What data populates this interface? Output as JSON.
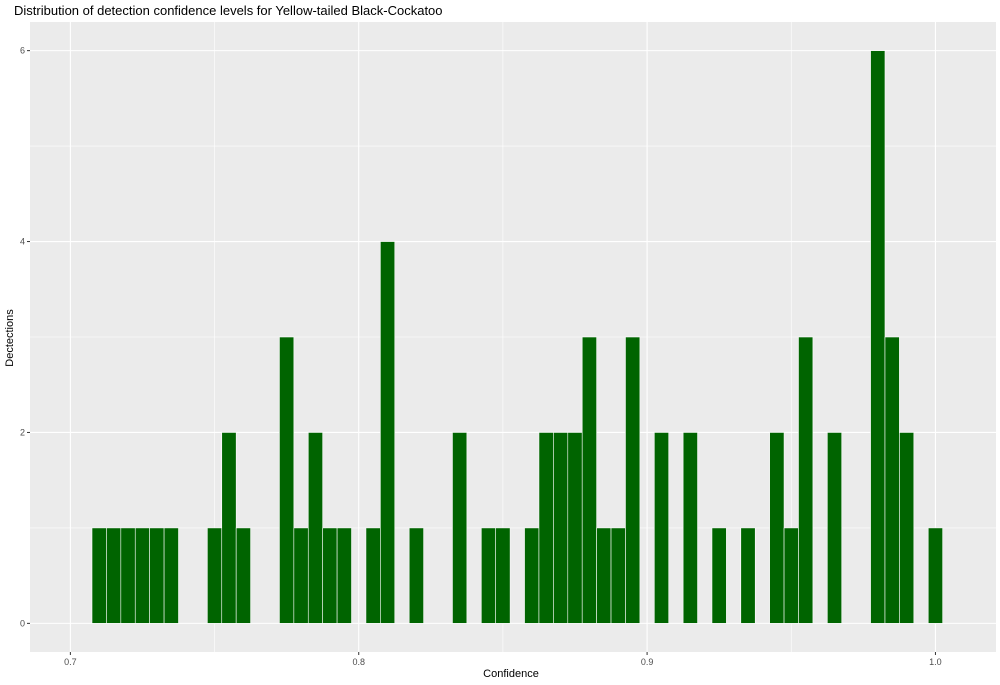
{
  "chart_data": {
    "type": "bar",
    "title": "Distribution of detection confidence levels for Yellow-tailed Black-Cockatoo",
    "xlabel": "Confidence",
    "ylabel": "Dectections",
    "xlim": [
      0.686,
      1.021
    ],
    "ylim": [
      -0.3,
      6.3
    ],
    "xticks": [
      0.7,
      0.8,
      0.9,
      1.0
    ],
    "xtick_labels": [
      "0.7",
      "0.8",
      "0.9",
      "1.0"
    ],
    "yticks": [
      0,
      2,
      4,
      6
    ],
    "ytick_labels": [
      "0",
      "2",
      "4",
      "6"
    ],
    "bin_width": 0.005,
    "grid": true,
    "colors": {
      "bar": "#006400",
      "bar_outline": "#ffffff",
      "panel": "#ebebeb",
      "grid": "#ffffff"
    },
    "bins": [
      {
        "x": 0.71,
        "count": 1
      },
      {
        "x": 0.715,
        "count": 1
      },
      {
        "x": 0.72,
        "count": 1
      },
      {
        "x": 0.725,
        "count": 1
      },
      {
        "x": 0.73,
        "count": 1
      },
      {
        "x": 0.735,
        "count": 1
      },
      {
        "x": 0.75,
        "count": 1
      },
      {
        "x": 0.755,
        "count": 2
      },
      {
        "x": 0.76,
        "count": 1
      },
      {
        "x": 0.775,
        "count": 3
      },
      {
        "x": 0.78,
        "count": 1
      },
      {
        "x": 0.785,
        "count": 2
      },
      {
        "x": 0.79,
        "count": 1
      },
      {
        "x": 0.795,
        "count": 1
      },
      {
        "x": 0.805,
        "count": 1
      },
      {
        "x": 0.81,
        "count": 4
      },
      {
        "x": 0.82,
        "count": 1
      },
      {
        "x": 0.835,
        "count": 2
      },
      {
        "x": 0.845,
        "count": 1
      },
      {
        "x": 0.85,
        "count": 1
      },
      {
        "x": 0.86,
        "count": 1
      },
      {
        "x": 0.865,
        "count": 2
      },
      {
        "x": 0.87,
        "count": 2
      },
      {
        "x": 0.875,
        "count": 2
      },
      {
        "x": 0.88,
        "count": 3
      },
      {
        "x": 0.885,
        "count": 1
      },
      {
        "x": 0.89,
        "count": 1
      },
      {
        "x": 0.895,
        "count": 3
      },
      {
        "x": 0.905,
        "count": 2
      },
      {
        "x": 0.915,
        "count": 2
      },
      {
        "x": 0.925,
        "count": 1
      },
      {
        "x": 0.935,
        "count": 1
      },
      {
        "x": 0.945,
        "count": 2
      },
      {
        "x": 0.95,
        "count": 1
      },
      {
        "x": 0.955,
        "count": 3
      },
      {
        "x": 0.965,
        "count": 2
      },
      {
        "x": 0.98,
        "count": 6
      },
      {
        "x": 0.985,
        "count": 3
      },
      {
        "x": 0.99,
        "count": 2
      },
      {
        "x": 1.0,
        "count": 1
      }
    ]
  }
}
